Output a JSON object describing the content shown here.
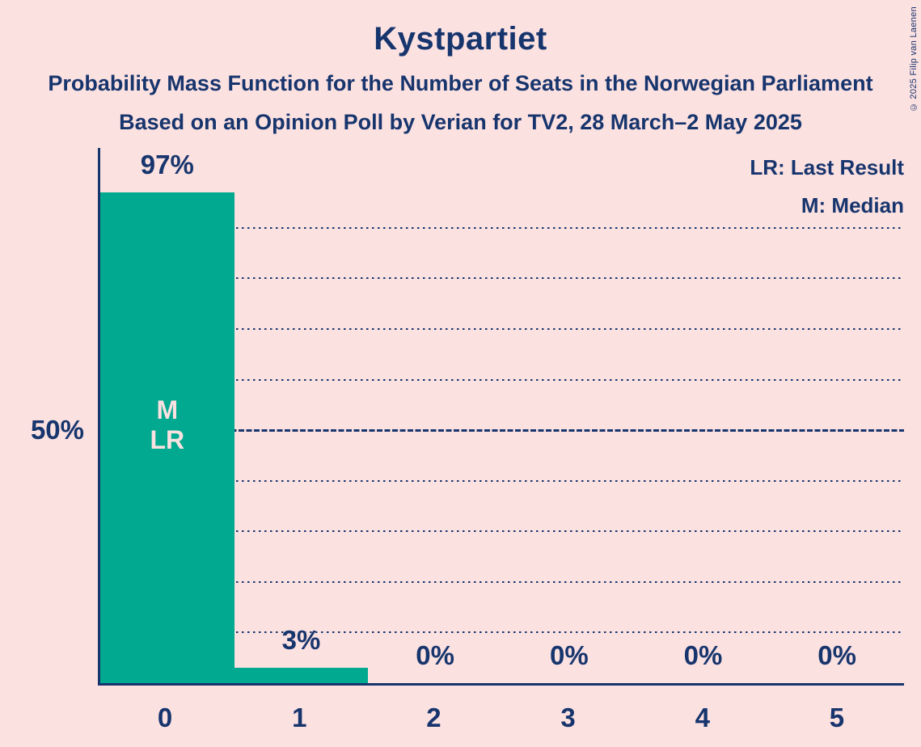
{
  "page": {
    "background_color": "#fce1e1",
    "text_color": "#17356d",
    "copyright": "© 2025 Filip van Laenen"
  },
  "header": {
    "title": "Kystpartiet",
    "subtitle": "Probability Mass Function for the Number of Seats in the Norwegian Parliament",
    "source": "Based on an Opinion Poll by Verian for TV2, 28 March–2 May 2025"
  },
  "legend": {
    "last_result": "LR: Last Result",
    "median": "M: Median"
  },
  "chart_data": {
    "type": "bar",
    "title": "Kystpartiet",
    "categories": [
      "0",
      "1",
      "2",
      "3",
      "4",
      "5"
    ],
    "values": [
      97,
      3,
      0,
      0,
      0,
      0
    ],
    "value_labels": [
      "97%",
      "3%",
      "0%",
      "0%",
      "0%",
      "0%"
    ],
    "bar_color": "#00a98f",
    "ylim": [
      0,
      105.8
    ],
    "y_tick": {
      "value": 50,
      "label": "50%"
    },
    "grid": {
      "dotted_pct": [
        10,
        20,
        30,
        40,
        60,
        70,
        80,
        90
      ],
      "solid_pct": 50,
      "style": "dotted"
    },
    "legend_position": "top-right",
    "bar_annotations": [
      {
        "bar_index": 0,
        "lines": [
          "M",
          "LR"
        ]
      }
    ]
  }
}
